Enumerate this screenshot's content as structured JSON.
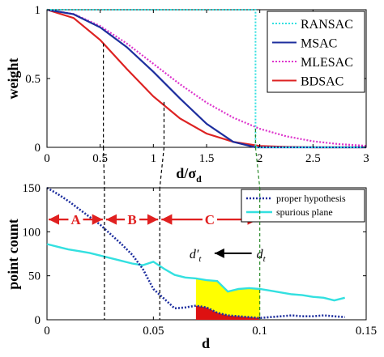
{
  "colors": {
    "ransac": "#33e0e0",
    "msac": "#1d2e9e",
    "mlesac": "#dd33cc",
    "bdsac": "#dd2222",
    "proper": "#1d2e9e",
    "spurious": "#33e0e0",
    "yellow_fill": "#ffff00",
    "red_fill": "#dd1111",
    "arrow_red": "#e02020",
    "dashed_guide": "#000000",
    "green_guide": "#2a8a2a"
  },
  "chart_data": [
    {
      "type": "line",
      "xlabel": "d/σ",
      "xlabel_sub": "d",
      "ylabel": "weight",
      "xlim": [
        0,
        3
      ],
      "ylim": [
        0,
        1
      ],
      "xticks": [
        0,
        0.5,
        1,
        1.5,
        2,
        2.5,
        3
      ],
      "xtick_labels": [
        "0",
        "0.5",
        "1",
        "1.5",
        "2",
        "2.5",
        "3"
      ],
      "yticks": [
        0,
        0.5,
        1
      ],
      "ytick_labels": [
        "0",
        "0.5",
        "1"
      ],
      "legend_position": "top-right",
      "series": [
        {
          "name": "RANSAC",
          "key": "ransac",
          "style": "dotted",
          "x": [
            0,
            1.96,
            1.96,
            3
          ],
          "y": [
            1,
            1,
            0,
            0
          ]
        },
        {
          "name": "MSAC",
          "key": "msac",
          "style": "solid",
          "x": [
            0,
            0.25,
            0.5,
            0.75,
            1.0,
            1.25,
            1.5,
            1.75,
            1.96,
            2.2,
            3
          ],
          "y": [
            1,
            0.967,
            0.872,
            0.728,
            0.549,
            0.355,
            0.171,
            0.04,
            0,
            0,
            0
          ]
        },
        {
          "name": "MLESAC",
          "key": "mlesac",
          "style": "dotted",
          "x": [
            0,
            0.25,
            0.5,
            0.75,
            1.0,
            1.25,
            1.5,
            1.75,
            2.0,
            2.25,
            2.5,
            2.75,
            3.0
          ],
          "y": [
            1,
            0.969,
            0.882,
            0.755,
            0.607,
            0.458,
            0.325,
            0.216,
            0.135,
            0.08,
            0.044,
            0.023,
            0.011
          ]
        },
        {
          "name": "BDSAC",
          "key": "bdsac",
          "style": "solid",
          "x": [
            0,
            0.25,
            0.5,
            0.75,
            1.0,
            1.25,
            1.5,
            1.75,
            2.0,
            2.25,
            2.5,
            3.0
          ],
          "y": [
            1,
            0.94,
            0.78,
            0.57,
            0.37,
            0.21,
            0.1,
            0.04,
            0.01,
            0.003,
            0.0,
            0.0
          ]
        }
      ],
      "guides_x": [
        0.53,
        1.1,
        1.96
      ],
      "guide_keys": [
        "dashed_guide",
        "dashed_guide",
        "green_guide"
      ]
    },
    {
      "type": "line",
      "xlabel": "d",
      "ylabel": "point count",
      "xlim": [
        0,
        0.15
      ],
      "ylim": [
        0,
        150
      ],
      "xticks": [
        0,
        0.05,
        0.1,
        0.15
      ],
      "xtick_labels": [
        "0",
        "0.05",
        "0.1",
        "0.15"
      ],
      "yticks": [
        0,
        50,
        100,
        150
      ],
      "ytick_labels": [
        "0",
        "50",
        "100",
        "150"
      ],
      "legend_position": "top-right",
      "series": [
        {
          "name": "proper hypothesis",
          "key": "proper",
          "style": "dotted",
          "x": [
            0,
            0.005,
            0.01,
            0.015,
            0.02,
            0.025,
            0.03,
            0.035,
            0.04,
            0.045,
            0.05,
            0.055,
            0.06,
            0.065,
            0.07,
            0.075,
            0.08,
            0.085,
            0.09,
            0.095,
            0.1,
            0.105,
            0.11,
            0.115,
            0.12,
            0.125,
            0.13,
            0.135,
            0.14
          ],
          "y": [
            150,
            143,
            135,
            126,
            117,
            108,
            97,
            86,
            74,
            58,
            35,
            24,
            13,
            14,
            16,
            14,
            8,
            5,
            4,
            3,
            2,
            3,
            4,
            5,
            4,
            4,
            5,
            4,
            3
          ]
        },
        {
          "name": "spurious plane",
          "key": "spurious",
          "style": "solid",
          "x": [
            0,
            0.005,
            0.01,
            0.015,
            0.02,
            0.025,
            0.03,
            0.035,
            0.04,
            0.045,
            0.05,
            0.055,
            0.06,
            0.065,
            0.07,
            0.075,
            0.08,
            0.085,
            0.09,
            0.095,
            0.1,
            0.105,
            0.11,
            0.115,
            0.12,
            0.125,
            0.13,
            0.135,
            0.14
          ],
          "y": [
            86,
            83,
            80,
            78,
            76,
            73,
            70,
            67,
            64,
            62,
            66,
            58,
            51,
            48,
            47,
            45,
            44,
            32,
            35,
            36,
            35,
            33,
            31,
            29,
            28,
            26,
            25,
            22,
            25
          ]
        }
      ],
      "guides_x": [
        0.027,
        0.053,
        0.1
      ],
      "guide_keys": [
        "dashed_guide",
        "dashed_guide",
        "green_guide"
      ],
      "region_labels": [
        "A",
        "B",
        "C"
      ],
      "region_bounds": [
        [
          0,
          0.027
        ],
        [
          0.027,
          0.053
        ],
        [
          0.053,
          0.1
        ]
      ],
      "region_arrow_y": 114,
      "shade_range": [
        0.07,
        0.1
      ],
      "d_prime_label": "d",
      "d_prime_sub": "t",
      "d_prime_mark": "′",
      "d_label": "d",
      "d_sub": "t",
      "d_arrow": {
        "from_x": 0.1,
        "to_x": 0.078,
        "y": 70
      },
      "d_prime_pos": {
        "x": 0.07,
        "y": 70
      },
      "d_pos": {
        "x": 0.1,
        "y": 70
      }
    }
  ]
}
